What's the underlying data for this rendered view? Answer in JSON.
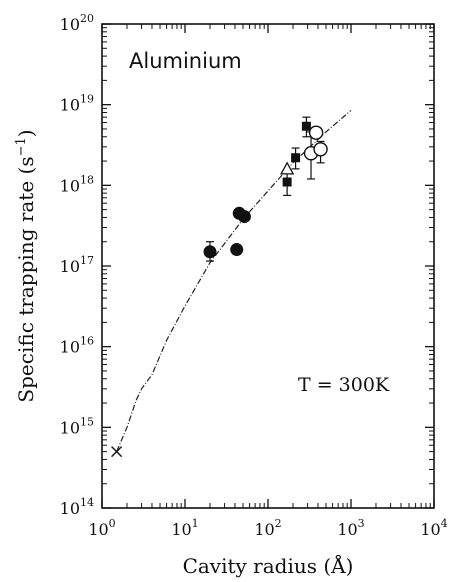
{
  "chart_data": {
    "type": "scatter",
    "xlabel": "Cavity radius (Å)",
    "ylabel": "Specific trapping rate (s",
    "ylabel_sup": "−1",
    "ylabel_close": ")",
    "x_scale": "log",
    "y_scale": "log",
    "xlim": [
      1,
      10000
    ],
    "ylim": [
      100000000000000.0,
      1e+20
    ],
    "grid": false,
    "x_ticks": [
      {
        "base": "10",
        "exp": "0",
        "value": 1
      },
      {
        "base": "10",
        "exp": "1",
        "value": 10
      },
      {
        "base": "10",
        "exp": "2",
        "value": 100
      },
      {
        "base": "10",
        "exp": "3",
        "value": 1000
      },
      {
        "base": "10",
        "exp": "4",
        "value": 10000
      }
    ],
    "y_ticks": [
      {
        "base": "10",
        "exp": "14",
        "value": 100000000000000.0
      },
      {
        "base": "10",
        "exp": "15",
        "value": 1000000000000000.0
      },
      {
        "base": "10",
        "exp": "16",
        "value": 1e+16
      },
      {
        "base": "10",
        "exp": "17",
        "value": 1e+17
      },
      {
        "base": "10",
        "exp": "18",
        "value": 1e+18
      },
      {
        "base": "10",
        "exp": "19",
        "value": 1e+19
      },
      {
        "base": "10",
        "exp": "20",
        "value": 1e+20
      }
    ],
    "annotations": {
      "material": "Aluminium",
      "temperature": "T = 300K"
    },
    "series": [
      {
        "marker": "filled-circle",
        "points": [
          {
            "x": 20,
            "y": 1.5e+17,
            "yerr_low": 1.15e+17,
            "yerr_high": 2e+17
          },
          {
            "x": 42,
            "y": 1.6e+17
          },
          {
            "x": 45,
            "y": 4.5e+17
          },
          {
            "x": 52,
            "y": 4.1e+17
          }
        ]
      },
      {
        "marker": "filled-square",
        "points": [
          {
            "x": 170,
            "y": 1.1e+18,
            "yerr_low": 7.5e+17,
            "yerr_high": 1.4e+18
          },
          {
            "x": 215,
            "y": 2.2e+18,
            "yerr_low": 1.6e+18,
            "yerr_high": 2.9e+18
          },
          {
            "x": 290,
            "y": 5.4e+18,
            "yerr_low": 4e+18,
            "yerr_high": 7e+18
          }
        ]
      },
      {
        "marker": "open-triangle",
        "points": [
          {
            "x": 170,
            "y": 1.6e+18
          }
        ]
      },
      {
        "marker": "open-circle",
        "points": [
          {
            "x": 330,
            "y": 2.5e+18,
            "yerr_low": 1.2e+18,
            "yerr_high": 4.6e+18
          },
          {
            "x": 380,
            "y": 4.5e+18
          },
          {
            "x": 430,
            "y": 2.8e+18,
            "yerr_low": 1.9e+18,
            "yerr_high": 3.5e+18
          }
        ]
      },
      {
        "marker": "cross",
        "points": [
          {
            "x": 1.5,
            "y": 500000000000000.0
          }
        ]
      },
      {
        "marker": "line",
        "points": [
          {
            "x": 1.5,
            "y": 500000000000000.0
          },
          {
            "x": 2.0,
            "y": 1000000000000000.0
          },
          {
            "x": 2.6,
            "y": 2200000000000000.0
          },
          {
            "x": 3.0,
            "y": 3000000000000000.0
          },
          {
            "x": 4.0,
            "y": 4500000000000000.0
          },
          {
            "x": 6.0,
            "y": 1.2e+16
          },
          {
            "x": 10,
            "y": 3.2e+16
          },
          {
            "x": 20,
            "y": 1.1e+17
          },
          {
            "x": 50,
            "y": 3.8e+17
          },
          {
            "x": 100,
            "y": 8.5e+17
          },
          {
            "x": 200,
            "y": 1.9e+18
          },
          {
            "x": 500,
            "y": 4.6e+18
          },
          {
            "x": 1000,
            "y": 8.5e+18
          }
        ]
      }
    ]
  }
}
